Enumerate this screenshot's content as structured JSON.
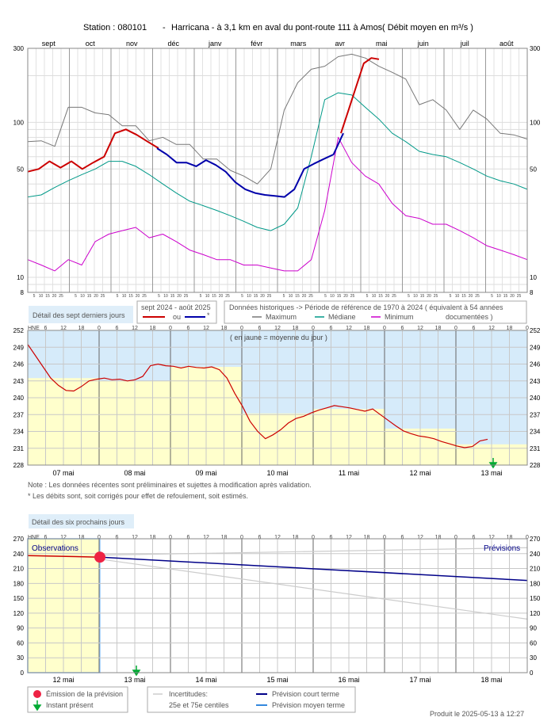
{
  "title": {
    "station": "Station : 080101",
    "sep": "-",
    "location": "Harricana - à 3,1 km en aval du pont-route 111 à Amos",
    "units": "( Débit moyen en m³/s )"
  },
  "colors": {
    "observed": "#cc0000",
    "estimated": "#0000aa",
    "maximum": "#777777",
    "median": "#009988",
    "minimum": "#cc00cc",
    "daily_mean_fill": "#ffffcc",
    "above_fill": "#d6ebfa",
    "label_box": "#dfeef9",
    "emission": "#ee2244",
    "present": "#00aa33",
    "forecast_short": "#000088",
    "forecast_mid": "#3388dd",
    "uncert": "#cccccc"
  },
  "legend_top": {
    "season_title": "sept 2024 - août 2025",
    "ou": "ou",
    "star": "*",
    "hist_title": "Données historiques -> Période de référence  de 1970 à 2024   ( équivalent à 54 années",
    "hist_title2": "documentées )",
    "maximum": "Maximum",
    "mediane": "Médiane",
    "minimum": "Minimum"
  },
  "section_labels": {
    "seven_days": "Détail des sept derniers jours",
    "six_days": "Détail des six prochains jours",
    "daily_mean_note": "( en jaune = moyenne du jour )",
    "observations": "Observations",
    "previsions": "Prévisions",
    "hne": "HNE"
  },
  "notes": {
    "line1": "Note : Les données récentes sont préliminaires et sujettes à modification après validation.",
    "line2": "* Les débits sont, soit corrigés pour effet de refoulement, soit estimés."
  },
  "legend_bottom": {
    "emission": "Émission de la prévision",
    "present": "Instant présent",
    "uncert_title": "Incertitudes:",
    "uncert_sub": "25e et 75e centiles",
    "short_term": "Prévision court terme",
    "mid_term": "Prévision moyen terme"
  },
  "footer": "Produit le 2025-05-13 à 12:27",
  "chart_data": [
    {
      "type": "line",
      "y_scale": "log",
      "ylim": [
        8,
        300
      ],
      "y_ticks": [
        "8",
        "10",
        "50",
        "100",
        "300"
      ],
      "month_labels": [
        "sept",
        "oct",
        "nov",
        "déc",
        "janv",
        "févr",
        "mars",
        "avr",
        "mai",
        "juin",
        "juil",
        "août"
      ],
      "day_tick_labels": [
        "5",
        "10",
        "15",
        "20",
        "25"
      ],
      "series": [
        {
          "key": "maximum",
          "values": [
            75,
            76,
            70,
            125,
            125,
            115,
            112,
            95,
            95,
            76,
            80,
            72,
            72,
            58,
            58,
            49,
            45,
            40,
            50,
            120,
            180,
            220,
            230,
            265,
            275,
            260,
            230,
            210,
            190,
            130,
            140,
            120,
            90,
            120,
            105,
            85,
            83,
            78
          ]
        },
        {
          "key": "median",
          "values": [
            33,
            34,
            38,
            42,
            46,
            50,
            56,
            56,
            52,
            46,
            40,
            35,
            31,
            29,
            27,
            25,
            23,
            21,
            20,
            22,
            28,
            60,
            140,
            155,
            150,
            125,
            105,
            85,
            75,
            65,
            62,
            60,
            55,
            50,
            45,
            42,
            40,
            37
          ]
        },
        {
          "key": "minimum",
          "values": [
            13,
            12,
            11,
            13,
            12,
            17,
            19,
            20,
            21,
            18,
            19,
            17,
            15,
            14,
            13,
            13,
            12,
            12,
            11.5,
            11,
            11,
            13,
            27,
            80,
            55,
            45,
            40,
            30,
            25,
            24,
            22,
            22,
            20,
            18,
            16,
            15,
            14,
            13
          ]
        },
        {
          "key": "observed",
          "values": [
            48,
            50,
            56,
            51,
            56,
            50,
            55,
            60,
            85,
            90,
            83,
            75,
            68
          ]
        },
        {
          "key": "estimated",
          "values": [
            68,
            62,
            55,
            55,
            52,
            57,
            53,
            48,
            41,
            37,
            35,
            34,
            33.5,
            33,
            37,
            50,
            54,
            58,
            62,
            85
          ]
        },
        {
          "key": "observed2",
          "values": [
            85,
            120,
            170,
            240,
            260,
            255
          ]
        }
      ]
    },
    {
      "type": "line",
      "days": [
        "07 mai",
        "08 mai",
        "09 mai",
        "10 mai",
        "11 mai",
        "12 mai",
        "13 mai"
      ],
      "hour_labels": [
        "6",
        "12",
        "18",
        "0"
      ],
      "y_ticks": [
        "228",
        "231",
        "234",
        "237",
        "240",
        "243",
        "246",
        "249",
        "252"
      ],
      "ylim": [
        228,
        252
      ],
      "daily_means": [
        243.5,
        243.0,
        245.5,
        237.2,
        238.0,
        234.5,
        231.7
      ],
      "values": [
        249.5,
        247.5,
        245.5,
        243.5,
        242.2,
        241.3,
        241.2,
        242.0,
        243.0,
        243.3,
        243.5,
        243.2,
        243.3,
        243.0,
        243.2,
        243.8,
        245.7,
        246.0,
        245.7,
        245.6,
        245.3,
        245.6,
        245.4,
        245.3,
        245.5,
        245.0,
        243.5,
        240.8,
        238.5,
        235.8,
        234.0,
        232.7,
        233.4,
        234.3,
        235.5,
        236.3,
        236.7,
        237.3,
        237.8,
        238.2,
        238.6,
        238.4,
        238.2,
        237.9,
        237.6,
        238.0,
        237.0,
        236.0,
        235.0,
        234.1,
        233.6,
        233.2,
        233.0,
        232.7,
        232.2,
        231.8,
        231.4,
        231.1,
        231.3,
        232.3,
        232.6
      ]
    },
    {
      "type": "line",
      "days": [
        "12 mai",
        "13 mai",
        "14 mai",
        "15 mai",
        "16 mai",
        "17 mai",
        "18 mai"
      ],
      "hour_labels": [
        "6",
        "12",
        "18",
        "0"
      ],
      "y_ticks": [
        "0",
        "30",
        "60",
        "90",
        "120",
        "150",
        "180",
        "210",
        "240",
        "270"
      ],
      "ylim": [
        0,
        270
      ],
      "observed": [
        236,
        235,
        234,
        233
      ],
      "forecast_short": [
        233,
        186
      ],
      "uncert_p75": [
        237,
        252
      ],
      "uncert_p25": [
        229,
        108
      ]
    }
  ]
}
